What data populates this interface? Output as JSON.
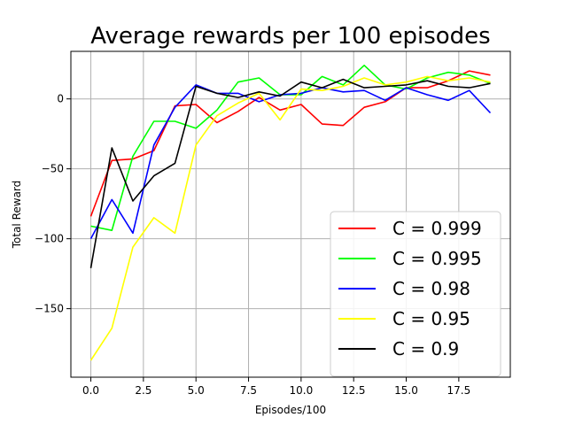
{
  "chart_data": {
    "type": "line",
    "title": "Average rewards per 100 episodes",
    "xlabel": "Episodes/100",
    "ylabel": "Total Reward",
    "x": [
      0,
      1,
      2,
      3,
      4,
      5,
      6,
      7,
      8,
      9,
      10,
      11,
      12,
      13,
      14,
      15,
      16,
      17,
      18,
      19
    ],
    "xlim": [
      -0.95,
      19.95
    ],
    "ylim": [
      -199,
      34
    ],
    "xticks": [
      0.0,
      2.5,
      5.0,
      7.5,
      10.0,
      12.5,
      15.0,
      17.5
    ],
    "xtick_labels": [
      "0.0",
      "2.5",
      "5.0",
      "7.5",
      "10.0",
      "12.5",
      "15.0",
      "17.5"
    ],
    "yticks": [
      -150,
      -100,
      -50,
      0
    ],
    "ytick_labels": [
      "−150",
      "−100",
      "−50",
      "0"
    ],
    "grid": true,
    "legend_position": "lower-right",
    "series": [
      {
        "name": "C = 0.999",
        "color": "#ff0000",
        "values": [
          -84,
          -44,
          -43,
          -37,
          -5,
          -4,
          -17,
          -9,
          1,
          -8,
          -4,
          -18,
          -19,
          -6,
          -2,
          8,
          8,
          13,
          20,
          17
        ]
      },
      {
        "name": "C = 0.995",
        "color": "#00ff00",
        "values": [
          -91,
          -94,
          -41,
          -16,
          -16,
          -21,
          -8,
          12,
          15,
          3,
          3,
          16,
          10,
          24,
          10,
          7,
          15,
          19,
          17,
          11
        ]
      },
      {
        "name": "C = 0.98",
        "color": "#0000ff",
        "values": [
          -100,
          -72,
          -96,
          -33,
          -6,
          10,
          4,
          4,
          -2,
          3,
          4,
          8,
          5,
          6,
          -1,
          8,
          3,
          -1,
          6,
          -10
        ]
      },
      {
        "name": "C = 0.95",
        "color": "#ffff00",
        "values": [
          -187,
          -164,
          -106,
          -85,
          -96,
          -33,
          -12,
          -3,
          4,
          -15,
          7,
          6,
          9,
          15,
          10,
          12,
          16,
          13,
          15,
          12
        ]
      },
      {
        "name": "C = 0.9",
        "color": "#000000",
        "values": [
          -121,
          -35,
          -73,
          -55,
          -46,
          9,
          4,
          1,
          5,
          2,
          12,
          8,
          14,
          8,
          9,
          10,
          13,
          9,
          8,
          11
        ]
      }
    ]
  }
}
